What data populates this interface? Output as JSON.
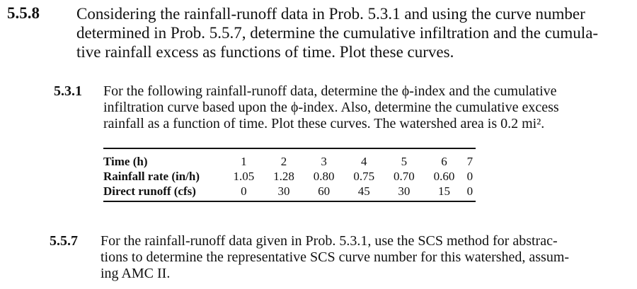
{
  "problems": [
    {
      "number": "5.5.8",
      "lines": [
        "Considering the rainfall-runoff data in Prob. 5.3.1 and using the curve number",
        "determined in Prob. 5.5.7, determine the cumulative infiltration and the cumula-",
        "tive rainfall excess as functions of time. Plot these curves."
      ]
    },
    {
      "number": "5.3.1",
      "lines": [
        "For the following rainfall-runoff data, determine the ϕ-index and the cumulative",
        "infiltration curve based upon the ϕ-index. Also, determine the cumulative excess",
        "rainfall as a function of time. Plot these curves. The watershed area is 0.2 mi²."
      ]
    },
    {
      "number": "5.5.7",
      "lines": [
        "For the rainfall-runoff data given in Prob. 5.3.1, use the SCS method for abstrac-",
        "tions to determine the representative SCS curve number for this watershed, assum-",
        "ing AMC II."
      ]
    }
  ],
  "table": {
    "rows": [
      {
        "label": "Time (h)",
        "values": [
          "1",
          "2",
          "3",
          "4",
          "5",
          "6",
          "7"
        ]
      },
      {
        "label": "Rainfall rate (in/h)",
        "values": [
          "1.05",
          "1.28",
          "0.80",
          "0.75",
          "0.70",
          "0.60",
          "0"
        ]
      },
      {
        "label": "Direct runoff (cfs)",
        "values": [
          "0",
          "30",
          "60",
          "45",
          "30",
          "15",
          "0"
        ]
      }
    ]
  }
}
